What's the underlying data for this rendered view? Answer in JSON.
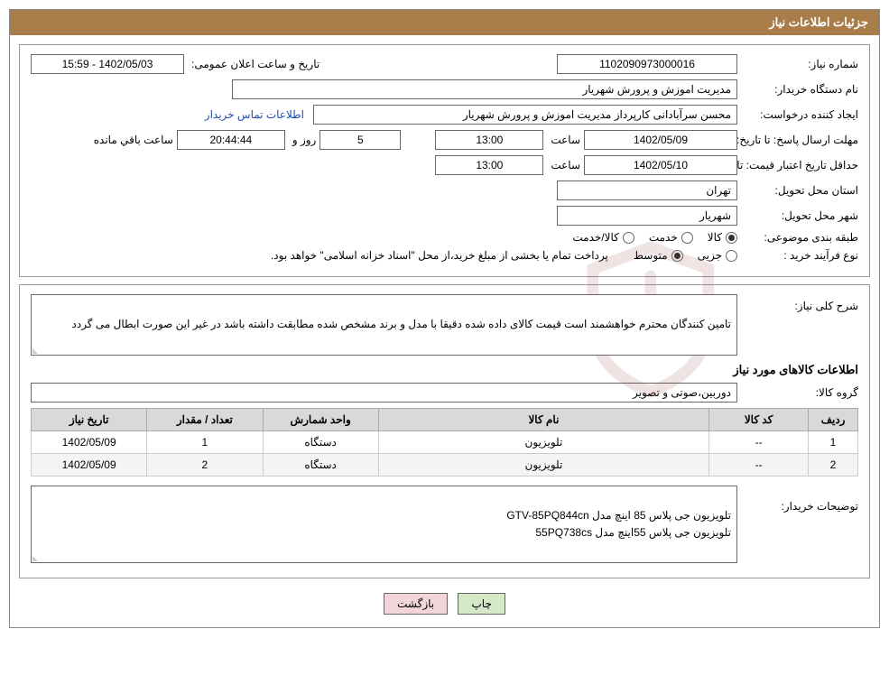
{
  "title_bar": "جزئیات اطلاعات نیاز",
  "labels": {
    "need_number": "شماره نیاز:",
    "announce_datetime": "تاریخ و ساعت اعلان عمومی:",
    "buyer_org": "نام دستگاه خریدار:",
    "requester": "ایجاد کننده درخواست:",
    "contact_link": "اطلاعات تماس خریدار",
    "reply_deadline": "مهلت ارسال پاسخ: تا تاریخ:",
    "hour": "ساعت",
    "days_and": "روز و",
    "remaining": "ساعت باقي مانده",
    "price_validity": "حداقل تاریخ اعتبار قیمت: تا تاریخ:",
    "delivery_province": "استان محل تحویل:",
    "delivery_city": "شهر محل تحویل:",
    "subject_class": "طبقه بندی موضوعی:",
    "purchase_process": "نوع فرآیند خرید :",
    "general_desc": "شرح کلی نیاز:",
    "items_title": "اطلاعات کالاهای مورد نیاز",
    "goods_group": "گروه کالا:",
    "buyer_notes": "توضیحات خریدار:"
  },
  "values": {
    "need_number": "1102090973000016",
    "announce_datetime": "1402/05/03 - 15:59",
    "buyer_org": "مدیریت اموزش و پرورش شهریار",
    "requester": "محسن سرآبادانی کارپرداز مدیریت اموزش و پرورش شهریار",
    "reply_date": "1402/05/09",
    "reply_time": "13:00",
    "days_remaining": "5",
    "time_remaining": "20:44:44",
    "price_valid_date": "1402/05/10",
    "price_valid_time": "13:00",
    "province": "تهران",
    "city": "شهریار",
    "process_note": "پرداخت تمام یا بخشی از مبلغ خرید،از محل \"اسناد خزانه اسلامی\" خواهد بود.",
    "general_desc": "تامین کنندگان محترم خواهشمند است قیمت کالای داده شده دقیقا با مدل و برند مشخص شده مطابقت داشته باشد در غیر این صورت ابطال می گردد",
    "goods_group": "دوربین،صوتی و تصویر",
    "buyer_notes": "تلویزیون جی پلاس 85 اینچ مدل GTV-85PQ844cn\nتلویزیون جی پلاس 55اینچ مدل 55PQ738cs"
  },
  "radios": {
    "class_goods": "کالا",
    "class_service": "خدمت",
    "class_both": "کالا/خدمت",
    "proc_partial": "جزیی",
    "proc_medium": "متوسط"
  },
  "table": {
    "columns": [
      "ردیف",
      "کد کالا",
      "نام کالا",
      "واحد شمارش",
      "تعداد / مقدار",
      "تاریخ نیاز"
    ],
    "col_widths": [
      "6%",
      "12%",
      "40%",
      "14%",
      "14%",
      "14%"
    ],
    "rows": [
      [
        "1",
        "--",
        "تلویزیون",
        "دستگاه",
        "1",
        "1402/05/09"
      ],
      [
        "2",
        "--",
        "تلویزیون",
        "دستگاه",
        "2",
        "1402/05/09"
      ]
    ]
  },
  "buttons": {
    "print": "چاپ",
    "back": "بازگشت"
  },
  "watermark_text": "AriaTender.neT",
  "colors": {
    "title_bg": "#a87d4a",
    "watermark": "#8a1f1f"
  }
}
